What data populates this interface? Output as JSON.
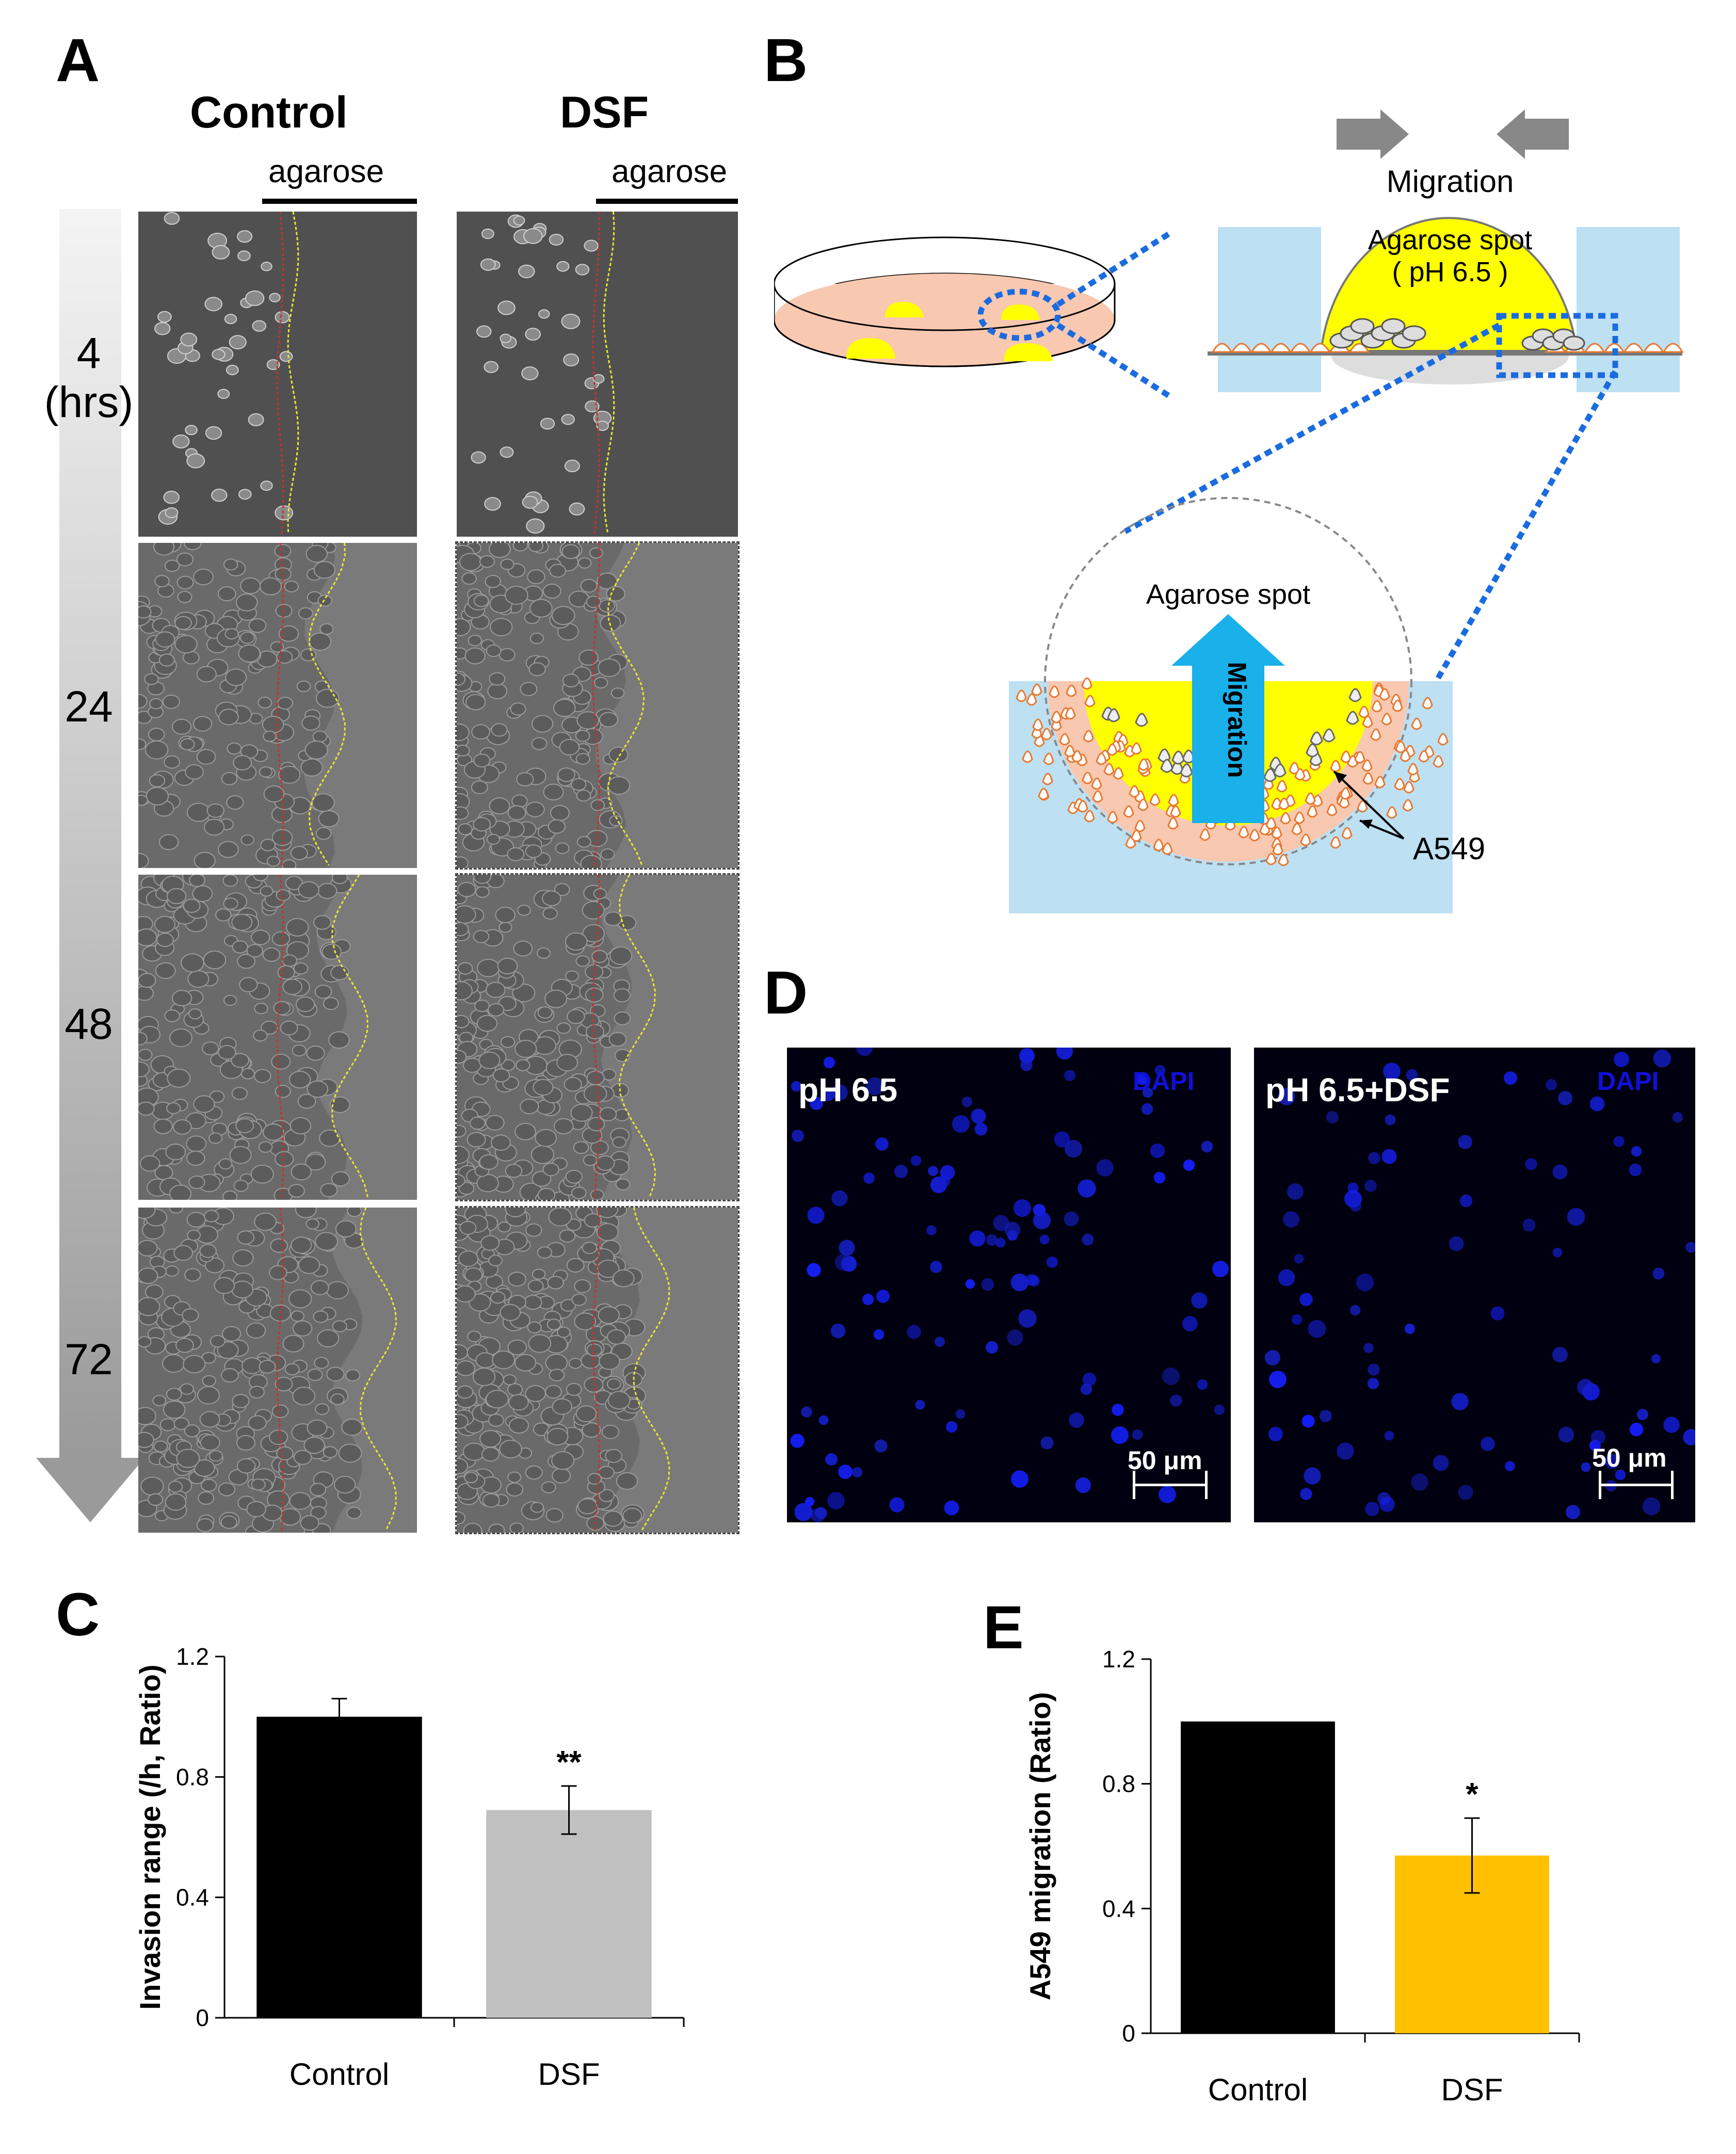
{
  "panel_a": {
    "letter": "A",
    "columns": [
      "Control",
      "DSF"
    ],
    "agarose_label": "agarose",
    "time_labels": [
      "4",
      "(hrs)",
      "24",
      "48",
      "72"
    ]
  },
  "panel_b": {
    "letter": "B",
    "migration_top": "Migration",
    "spot_label": "Agarose spot",
    "spot_ph": "( pH 6.5 )",
    "zoom_spot_label": "Agarose spot",
    "arrow_label": "Migration",
    "cell_label": "A549"
  },
  "panel_d": {
    "letter": "D",
    "images": [
      {
        "title": "pH 6.5",
        "tag": "DAPI",
        "scale": "50 μm"
      },
      {
        "title": "pH 6.5+DSF",
        "tag": "DAPI",
        "scale": "50 μm"
      }
    ]
  },
  "chart_data": [
    {
      "panel": "C",
      "type": "bar",
      "ylabel": "Invasion range (/h, Ratio)",
      "categories": [
        "Control",
        "DSF"
      ],
      "values": [
        1.0,
        0.69
      ],
      "errors": [
        0.06,
        0.08
      ],
      "significance": [
        "",
        "**"
      ],
      "colors": [
        "#000000",
        "#c0c0c0"
      ],
      "ylim": [
        0,
        1.2
      ],
      "yticks": [
        "0",
        "0.4",
        "0.8",
        "1.2"
      ]
    },
    {
      "panel": "E",
      "type": "bar",
      "ylabel": "A549 migration (Ratio)",
      "categories": [
        "Control",
        "DSF"
      ],
      "values": [
        1.0,
        0.57
      ],
      "errors": [
        0.0,
        0.12
      ],
      "significance": [
        "",
        "*"
      ],
      "colors": [
        "#000000",
        "#ffc000"
      ],
      "ylim": [
        0,
        1.2
      ],
      "yticks": [
        "0",
        "0.4",
        "0.8",
        "1.2"
      ]
    }
  ]
}
